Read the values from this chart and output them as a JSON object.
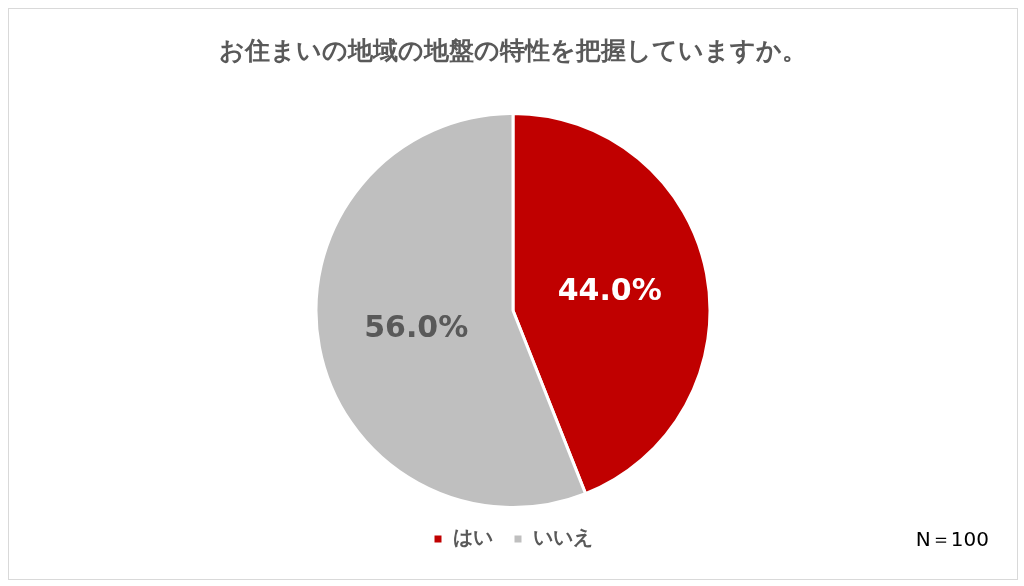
{
  "chart_data": {
    "type": "pie",
    "title": "お住まいの地域の地盤の特性を把握していますか。",
    "categories": [
      "はい",
      "いいえ"
    ],
    "values": [
      44,
      56
    ],
    "colors": [
      "#c00000",
      "#bfbfbf"
    ],
    "value_labels": [
      "44.0%",
      "56.0%"
    ],
    "legend": "bottom",
    "annotations": [
      "N＝100"
    ]
  }
}
